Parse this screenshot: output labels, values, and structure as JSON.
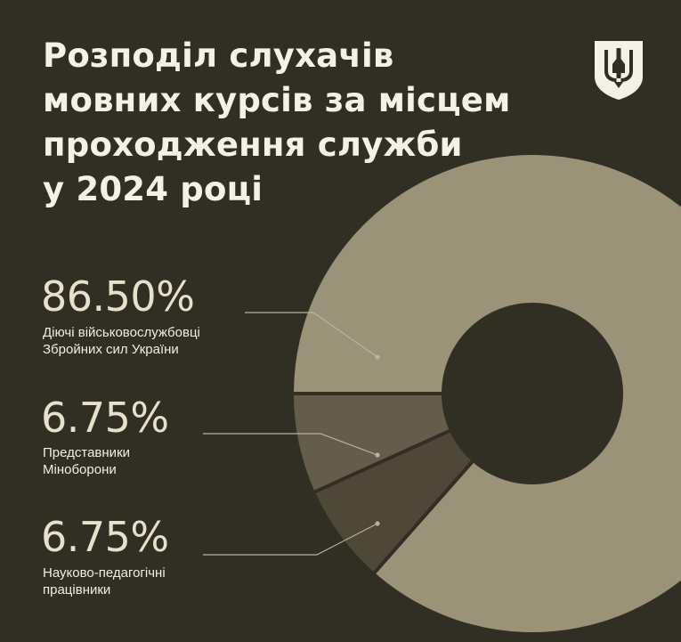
{
  "title_lines": [
    "Розподіл слухачів",
    "мовних курсів за місцем",
    "проходження служби",
    "у 2024 році"
  ],
  "colors": {
    "background": "#312e24",
    "slice_1": "#9b9378",
    "slice_2": "#645d4c",
    "slice_3": "#4e4839",
    "leader_line": "#b9b29c",
    "text": "#f4f1e6"
  },
  "emblem": "tryzub-shield-icon",
  "chart_data": {
    "type": "pie",
    "subtype": "donut",
    "categories": [
      "Діючі військовослужбовці Збройних сил України",
      "Представники Міноборони",
      "Науково-педагогічні працівники"
    ],
    "values": [
      86.5,
      6.75,
      6.75
    ],
    "unit": "%"
  },
  "labels": [
    {
      "percent": "86.50%",
      "lines": [
        "Діючі військовослужбовці",
        "Збройних сил України"
      ]
    },
    {
      "percent": "6.75%",
      "lines": [
        "Представники",
        "Міноборони"
      ]
    },
    {
      "percent": "6.75%",
      "lines": [
        "Науково-педагогічні",
        "працівники"
      ]
    }
  ]
}
